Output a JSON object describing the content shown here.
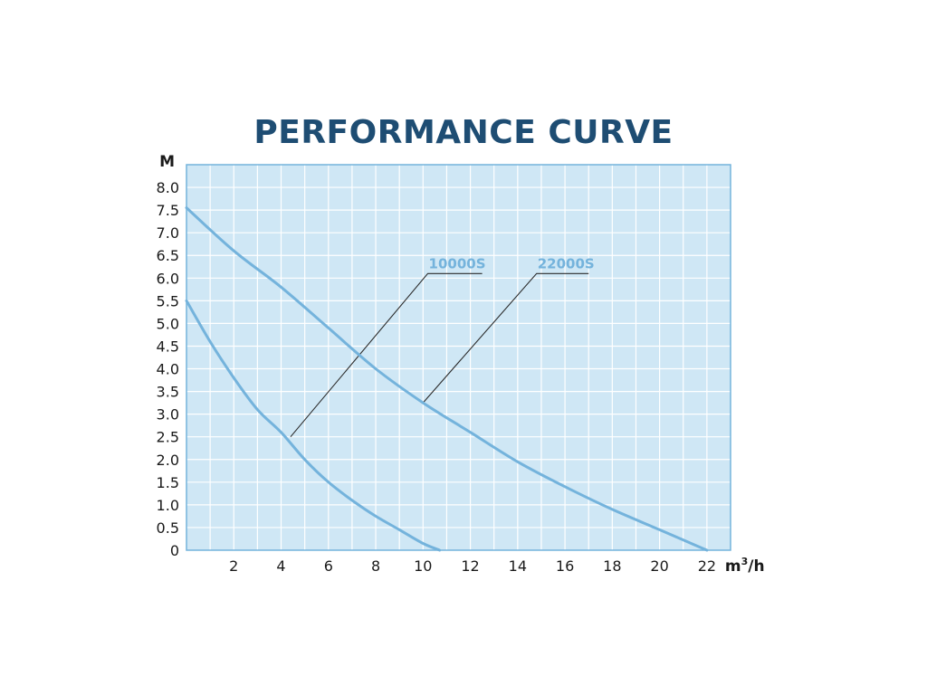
{
  "chart_data": {
    "type": "line",
    "title": "PERFORMANCE CURVE",
    "ylabel": "M",
    "xlabel_unit": "m",
    "xlabel_sup": "3",
    "xlabel_suffix": "/h",
    "xlim": [
      0,
      23
    ],
    "ylim": [
      0,
      8.5
    ],
    "x_ticks": [
      2,
      4,
      6,
      8,
      10,
      12,
      14,
      16,
      18,
      20,
      22
    ],
    "x_tick_labels": [
      "2",
      "4",
      "6",
      "8",
      "10",
      "12",
      "14",
      "16",
      "18",
      "20",
      "22"
    ],
    "y_ticks": [
      0,
      0.5,
      1.0,
      1.5,
      2.0,
      2.5,
      3.0,
      3.5,
      4.0,
      4.5,
      5.0,
      5.5,
      6.0,
      6.5,
      7.0,
      7.5,
      8.0
    ],
    "y_tick_labels": [
      "0",
      "0.5",
      "1.0",
      "1.5",
      "2.0",
      "2.5",
      "3.0",
      "3.5",
      "4.0",
      "4.5",
      "5.0",
      "5.5",
      "6.0",
      "6.5",
      "7.0",
      "7.5",
      "8.0"
    ],
    "grid": true,
    "background_color": "#cfe7f5",
    "grid_color": "#ffffff",
    "series": [
      {
        "name": "10000S",
        "color": "#74b3dc",
        "x": [
          0,
          1,
          2,
          3,
          4,
          5,
          6,
          7,
          8,
          9,
          10,
          10.7
        ],
        "y": [
          5.5,
          4.6,
          3.8,
          3.1,
          2.6,
          2.0,
          1.5,
          1.1,
          0.75,
          0.45,
          0.15,
          0
        ]
      },
      {
        "name": "22000S",
        "color": "#74b3dc",
        "x": [
          0,
          2,
          4,
          6,
          8,
          10,
          12,
          14,
          16,
          18,
          20,
          22
        ],
        "y": [
          7.55,
          6.6,
          5.8,
          4.9,
          4.0,
          3.25,
          2.6,
          1.95,
          1.4,
          0.9,
          0.45,
          0
        ]
      }
    ],
    "callouts": [
      {
        "series": "10000S",
        "point_x": 4.4,
        "point_y": 2.5,
        "knee_x": 10.2,
        "knee_y": 6.1,
        "end_x": 12.5
      },
      {
        "series": "22000S",
        "point_x": 10.0,
        "point_y": 3.25,
        "knee_x": 14.8,
        "knee_y": 6.1,
        "end_x": 17.0
      }
    ]
  }
}
